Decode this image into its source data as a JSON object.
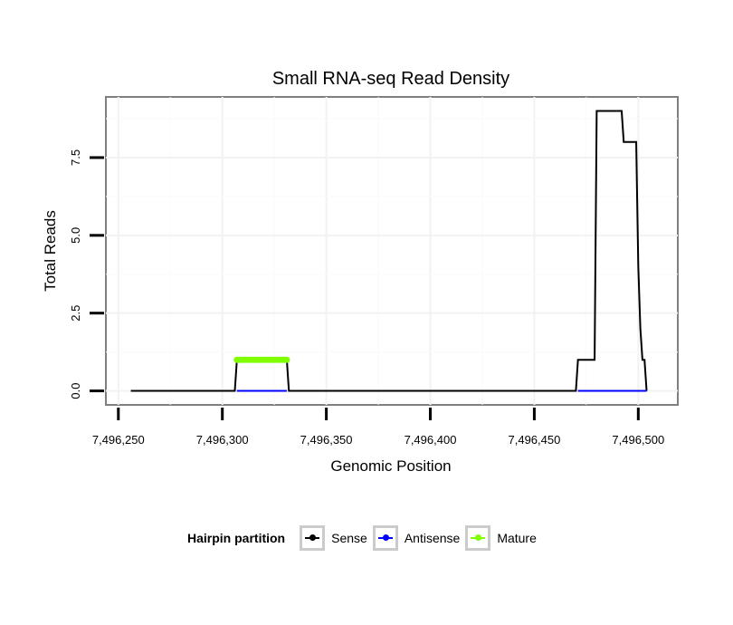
{
  "chart_data": {
    "type": "line",
    "title": "Small RNA-seq Read Density",
    "xlabel": "Genomic Position",
    "ylabel": "Total Reads",
    "xlim": [
      7496244,
      7496519
    ],
    "ylim": [
      -0.45,
      9.45
    ],
    "xticks": [
      7496250,
      7496300,
      7496350,
      7496400,
      7496450,
      7496500
    ],
    "xtick_labels": [
      "7,496,250",
      "7,496,300",
      "7,496,350",
      "7,496,400",
      "7,496,450",
      "7,496,500"
    ],
    "yticks": [
      0,
      2.5,
      5,
      7.5
    ],
    "ytick_labels": [
      "0.0",
      "2.5",
      "5.0",
      "7.5"
    ],
    "grid": true,
    "legend": {
      "title": "Hairpin partition",
      "placement": "bottom"
    },
    "series": [
      {
        "name": "Sense",
        "color": "#000000",
        "points": [
          [
            7496256,
            0
          ],
          [
            7496306,
            0
          ],
          [
            7496307,
            1
          ],
          [
            7496331,
            1
          ],
          [
            7496332,
            0
          ],
          [
            7496470,
            0
          ],
          [
            7496471,
            1
          ],
          [
            7496479,
            1
          ],
          [
            7496480,
            9
          ],
          [
            7496492,
            9
          ],
          [
            7496493,
            8
          ],
          [
            7496499,
            8
          ],
          [
            7496500,
            4
          ],
          [
            7496501,
            2
          ],
          [
            7496502,
            1
          ],
          [
            7496503,
            1
          ],
          [
            7496504,
            0
          ]
        ]
      },
      {
        "name": "Antisense",
        "color": "#0000ff",
        "points": [
          [
            7496307,
            0
          ],
          [
            7496331,
            0
          ],
          [
            null,
            null
          ],
          [
            7496471,
            0
          ],
          [
            7496504,
            0
          ]
        ]
      },
      {
        "name": "Mature",
        "color": "#7fff00",
        "points": [
          [
            7496307,
            1
          ],
          [
            7496308,
            1
          ],
          [
            7496309,
            1
          ],
          [
            7496310,
            1
          ],
          [
            7496311,
            1
          ],
          [
            7496312,
            1
          ],
          [
            7496313,
            1
          ],
          [
            7496314,
            1
          ],
          [
            7496315,
            1
          ],
          [
            7496316,
            1
          ],
          [
            7496317,
            1
          ],
          [
            7496318,
            1
          ],
          [
            7496319,
            1
          ],
          [
            7496320,
            1
          ],
          [
            7496321,
            1
          ],
          [
            7496322,
            1
          ],
          [
            7496323,
            1
          ],
          [
            7496324,
            1
          ],
          [
            7496325,
            1
          ],
          [
            7496326,
            1
          ],
          [
            7496327,
            1
          ],
          [
            7496328,
            1
          ],
          [
            7496329,
            1
          ],
          [
            7496330,
            1
          ],
          [
            7496331,
            1
          ]
        ],
        "markers": true
      }
    ]
  }
}
